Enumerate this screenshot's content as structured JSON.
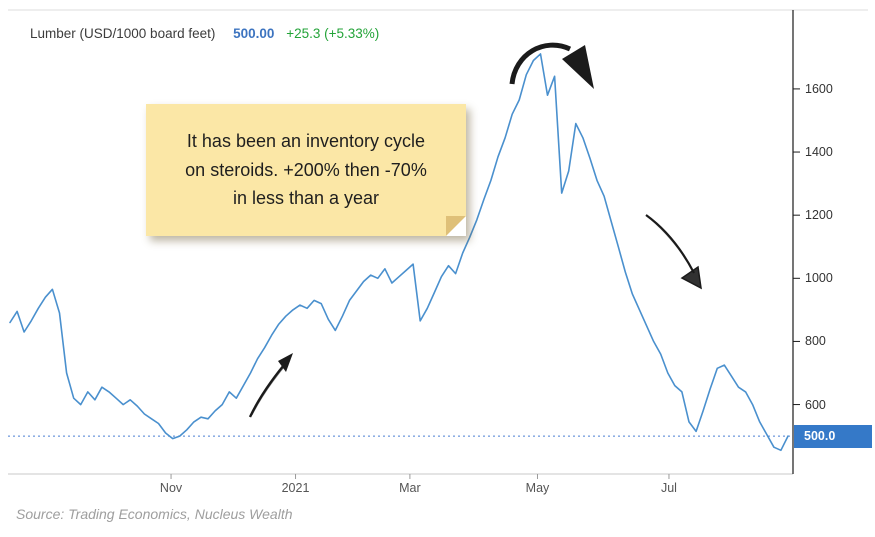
{
  "header": {
    "title": "Lumber (USD/1000 board feet)",
    "price": "500.00",
    "change": "+25.3 (+5.33%)"
  },
  "note": {
    "lines": [
      "It has been an inventory cycle",
      "on steroids. +200% then -70%",
      "in less than a year"
    ]
  },
  "source": "Source: Trading Economics, Nucleus Wealth",
  "colors": {
    "line": "#4a90ce",
    "dotted_line": "#4a7fd4",
    "badge_bg": "#3579c8",
    "price_text": "#3d74c0",
    "change_text": "#23a338",
    "note_bg": "#fbe7a6",
    "note_fold": "#dfc078",
    "arrow": "#1b1b1b"
  },
  "chart_data": {
    "type": "line",
    "title": "Lumber (USD/1000 board feet)",
    "xlabel": "",
    "ylabel": "USD per 1000 board feet",
    "grid": false,
    "legend": false,
    "axis_side": "right",
    "ylim": [
      380,
      1850
    ],
    "y_ticks": [
      600,
      800,
      1000,
      1200,
      1400,
      1600
    ],
    "x_ticks": [
      {
        "label": "Nov",
        "pos": 0.207
      },
      {
        "label": "2021",
        "pos": 0.367
      },
      {
        "label": "Mar",
        "pos": 0.514
      },
      {
        "label": "May",
        "pos": 0.678
      },
      {
        "label": "Jul",
        "pos": 0.847
      }
    ],
    "current_price": 500.0,
    "current_price_label": "500.0",
    "series": [
      {
        "name": "Lumber",
        "color": "#4a90ce",
        "values": [
          860,
          895,
          830,
          865,
          905,
          940,
          965,
          890,
          700,
          620,
          600,
          640,
          615,
          655,
          640,
          620,
          600,
          615,
          595,
          570,
          555,
          540,
          510,
          492,
          500,
          520,
          545,
          560,
          555,
          580,
          600,
          640,
          620,
          660,
          700,
          745,
          780,
          820,
          855,
          880,
          900,
          915,
          905,
          930,
          920,
          870,
          835,
          880,
          930,
          960,
          990,
          1010,
          1000,
          1030,
          985,
          1005,
          1025,
          1045,
          865,
          905,
          955,
          1005,
          1040,
          1015,
          1080,
          1130,
          1185,
          1250,
          1310,
          1385,
          1445,
          1520,
          1565,
          1645,
          1690,
          1711,
          1580,
          1640,
          1270,
          1340,
          1490,
          1445,
          1380,
          1310,
          1260,
          1180,
          1100,
          1020,
          950,
          900,
          850,
          800,
          760,
          700,
          660,
          640,
          545,
          515,
          580,
          650,
          715,
          725,
          690,
          655,
          640,
          600,
          545,
          505,
          465,
          455,
          500
        ]
      }
    ]
  }
}
